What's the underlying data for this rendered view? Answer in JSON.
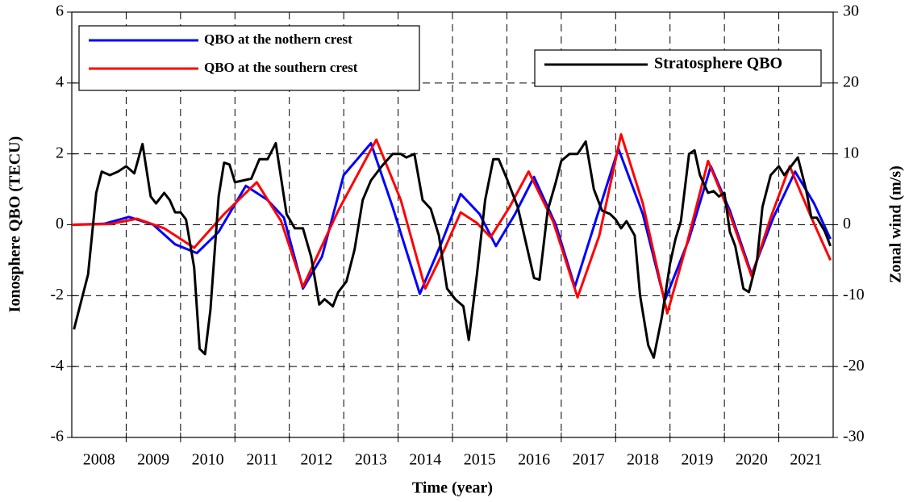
{
  "chart_data": {
    "type": "line",
    "xlabel": "Time (year)",
    "ylabel": "Ionosphere QBO (TECU)",
    "y2label": "Zonal wind (m/s)",
    "xlim": [
      2008,
      2022
    ],
    "xticks": [
      {
        "value": 2008.5,
        "label": "2008"
      },
      {
        "value": 2009.5,
        "label": "2009"
      },
      {
        "value": 2010.5,
        "label": "2010"
      },
      {
        "value": 2011.5,
        "label": "2011"
      },
      {
        "value": 2012.5,
        "label": "2012"
      },
      {
        "value": 2013.5,
        "label": "2013"
      },
      {
        "value": 2014.5,
        "label": "2014"
      },
      {
        "value": 2015.5,
        "label": "2015"
      },
      {
        "value": 2016.5,
        "label": "2016"
      },
      {
        "value": 2017.5,
        "label": "2017"
      },
      {
        "value": 2018.5,
        "label": "2018"
      },
      {
        "value": 2019.5,
        "label": "2019"
      },
      {
        "value": 2020.5,
        "label": "2020"
      },
      {
        "value": 2021.5,
        "label": "2021"
      }
    ],
    "xgrid": [
      2009,
      2010,
      2011,
      2012,
      2013,
      2014,
      2015,
      2016,
      2017,
      2018,
      2019,
      2020,
      2021
    ],
    "ylim": [
      -6,
      6
    ],
    "yticks": [
      -6,
      -4,
      -2,
      0,
      2,
      4,
      6
    ],
    "y2lim": [
      -30,
      30
    ],
    "y2ticks": [
      -30,
      -20,
      -10,
      0,
      10,
      20,
      30
    ],
    "grid": true,
    "legend": {
      "y": "upper left",
      "y2": "upper right"
    },
    "series": [
      {
        "name": "QBO at the nothern crest",
        "color": "#0000ff",
        "axis": "y",
        "x": [
          2008.0,
          2008.6,
          2009.05,
          2009.5,
          2009.9,
          2010.3,
          2010.7,
          2011.2,
          2011.6,
          2011.9,
          2012.25,
          2012.6,
          2013.0,
          2013.5,
          2013.9,
          2014.4,
          2014.8,
          2015.15,
          2015.5,
          2015.8,
          2016.15,
          2016.5,
          2016.9,
          2017.25,
          2017.65,
          2018.05,
          2018.5,
          2018.9,
          2019.35,
          2019.75,
          2020.1,
          2020.5,
          2020.9,
          2021.3,
          2021.65,
          2021.95
        ],
        "values": [
          0,
          0.03,
          0.22,
          0.0,
          -0.55,
          -0.8,
          -0.2,
          1.1,
          0.7,
          0.2,
          -1.8,
          -0.9,
          1.4,
          2.3,
          0.5,
          -1.95,
          -0.5,
          0.87,
          0.3,
          -0.6,
          0.3,
          1.35,
          0.0,
          -1.75,
          0.2,
          2.15,
          0.3,
          -2.15,
          -0.4,
          1.65,
          0.4,
          -1.4,
          0.2,
          1.5,
          0.6,
          -0.4
        ]
      },
      {
        "name": "QBO at the southern crest",
        "color": "#ff0000",
        "axis": "y",
        "x": [
          2008.0,
          2008.7,
          2009.2,
          2009.7,
          2010.25,
          2010.8,
          2011.4,
          2011.85,
          2012.25,
          2012.9,
          2013.6,
          2014.05,
          2014.5,
          2014.85,
          2015.15,
          2015.45,
          2015.7,
          2016.05,
          2016.4,
          2016.85,
          2017.3,
          2017.7,
          2018.1,
          2018.5,
          2018.95,
          2019.3,
          2019.7,
          2020.1,
          2020.5,
          2020.85,
          2021.2,
          2021.6,
          2021.95
        ],
        "values": [
          0,
          0.02,
          0.17,
          -0.1,
          -0.65,
          0.3,
          1.2,
          0.1,
          -1.75,
          0.4,
          2.4,
          0.7,
          -1.8,
          -0.7,
          0.35,
          0.05,
          -0.35,
          0.5,
          1.5,
          0.1,
          -2.05,
          -0.3,
          2.55,
          0.6,
          -2.5,
          -0.6,
          1.8,
          0.3,
          -1.45,
          0.2,
          1.65,
          0.2,
          -1.0
        ]
      },
      {
        "name": "Stratosphere QBO",
        "color": "#000000",
        "axis": "y2",
        "x": [
          2008.04,
          2008.3,
          2008.45,
          2008.55,
          2008.7,
          2008.85,
          2009.0,
          2009.15,
          2009.3,
          2009.45,
          2009.55,
          2009.7,
          2009.8,
          2009.9,
          2010.0,
          2010.1,
          2010.25,
          2010.35,
          2010.45,
          2010.55,
          2010.7,
          2010.8,
          2010.9,
          2011.0,
          2011.15,
          2011.3,
          2011.45,
          2011.6,
          2011.75,
          2011.85,
          2011.95,
          2012.1,
          2012.25,
          2012.4,
          2012.55,
          2012.65,
          2012.8,
          2012.9,
          2013.05,
          2013.2,
          2013.35,
          2013.5,
          2013.7,
          2013.9,
          2014.05,
          2014.15,
          2014.3,
          2014.45,
          2014.6,
          2014.75,
          2014.9,
          2015.05,
          2015.2,
          2015.3,
          2015.45,
          2015.6,
          2015.75,
          2015.85,
          2016.0,
          2016.2,
          2016.35,
          2016.5,
          2016.6,
          2016.75,
          2016.9,
          2017.0,
          2017.15,
          2017.3,
          2017.45,
          2017.6,
          2017.75,
          2017.9,
          2018.0,
          2018.1,
          2018.2,
          2018.35,
          2018.45,
          2018.6,
          2018.7,
          2018.85,
          2019.0,
          2019.1,
          2019.2,
          2019.35,
          2019.45,
          2019.55,
          2019.7,
          2019.8,
          2019.9,
          2020.0,
          2020.1,
          2020.2,
          2020.35,
          2020.45,
          2020.6,
          2020.7,
          2020.85,
          2021.0,
          2021.1,
          2021.2,
          2021.35,
          2021.5,
          2021.6,
          2021.7,
          2021.85,
          2021.95
        ],
        "values": [
          -14.75,
          -7,
          4.5,
          7.5,
          7,
          7.5,
          8.25,
          7.25,
          11.4,
          4,
          3,
          4.5,
          3.5,
          1.75,
          1.75,
          0.75,
          -6,
          -17.5,
          -18.25,
          -12,
          4,
          8.75,
          8.5,
          6,
          6.25,
          6.5,
          9.25,
          9.25,
          11.5,
          6.5,
          1.5,
          -0.5,
          -0.5,
          -4.5,
          -11.25,
          -10.5,
          -11.5,
          -9.5,
          -8,
          -3.5,
          3.5,
          6.25,
          8.25,
          10,
          10,
          9.5,
          10,
          3.5,
          2.25,
          -1.5,
          -9,
          -10.5,
          -11.5,
          -16.25,
          -7,
          3.5,
          9.25,
          9.25,
          6.5,
          2.5,
          -2.5,
          -7.5,
          -7.75,
          2,
          6,
          9,
          10,
          10,
          11.75,
          5,
          2,
          1.5,
          0.75,
          -0.5,
          0.5,
          -1.5,
          -10,
          -17,
          -18.75,
          -13,
          -5.5,
          -2,
          0.5,
          10,
          10.5,
          7,
          4.5,
          4.75,
          4,
          4.5,
          -1,
          -3,
          -9,
          -9.5,
          -5,
          2.5,
          7,
          8.25,
          7,
          8,
          9.5,
          5,
          1,
          1,
          -1,
          -3
        ]
      }
    ]
  }
}
